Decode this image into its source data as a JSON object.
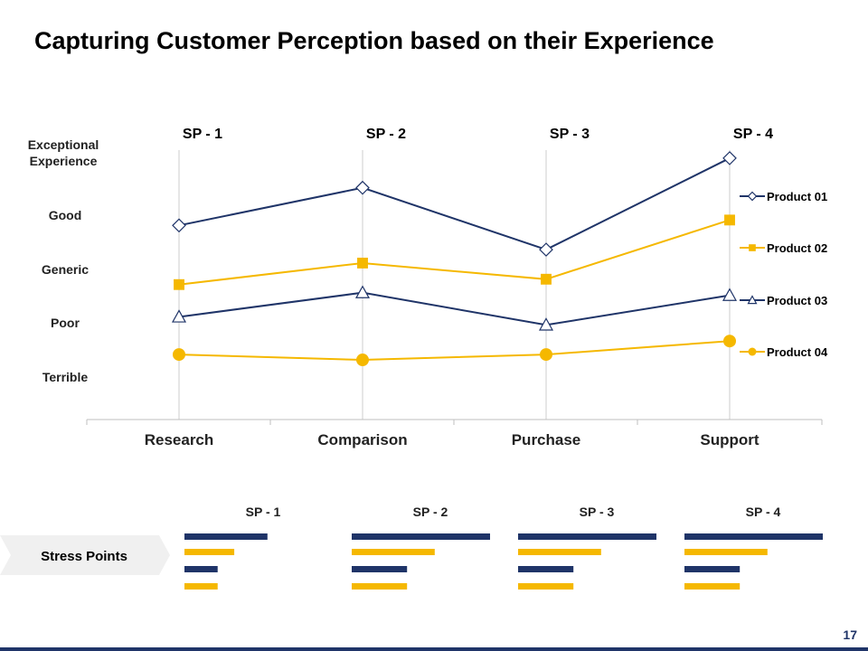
{
  "title": "Capturing Customer Perception based on their Experience",
  "page_number": "17",
  "colors": {
    "navy": "#1f3468",
    "gold": "#f5b800",
    "grid": "#cccccc"
  },
  "chart_data": {
    "type": "line",
    "title": "",
    "categories": [
      "Research",
      "Comparison",
      "Purchase",
      "Support"
    ],
    "stress_point_labels": [
      "SP - 1",
      "SP - 2",
      "SP - 3",
      "SP - 4"
    ],
    "y_levels": [
      "Terrible",
      "Poor",
      "Generic",
      "Good",
      "Exceptional Experience"
    ],
    "ylim": [
      0,
      4.3
    ],
    "series": [
      {
        "name": "Product 01",
        "marker": "diamond",
        "color": "#1f3468",
        "values": [
          2.6,
          3.3,
          2.15,
          3.85
        ]
      },
      {
        "name": "Product 02",
        "marker": "square",
        "color": "#f5b800",
        "values": [
          1.5,
          1.9,
          1.6,
          2.7
        ]
      },
      {
        "name": "Product 03",
        "marker": "triangle",
        "color": "#1f3468",
        "values": [
          0.9,
          1.35,
          0.75,
          1.3
        ]
      },
      {
        "name": "Product 04",
        "marker": "circle",
        "color": "#f5b800",
        "values": [
          0.2,
          0.1,
          0.2,
          0.45
        ]
      }
    ],
    "legend_position": "right"
  },
  "stress_points": {
    "label": "Stress Points",
    "groups": [
      {
        "label": "SP - 1",
        "bars": [
          0.6,
          0.36,
          0.24,
          0.24
        ]
      },
      {
        "label": "SP - 2",
        "bars": [
          1.0,
          0.6,
          0.4,
          0.4
        ]
      },
      {
        "label": "SP - 3",
        "bars": [
          1.0,
          0.6,
          0.4,
          0.4
        ]
      },
      {
        "label": "SP - 4",
        "bars": [
          1.0,
          0.6,
          0.4,
          0.4
        ]
      }
    ]
  }
}
